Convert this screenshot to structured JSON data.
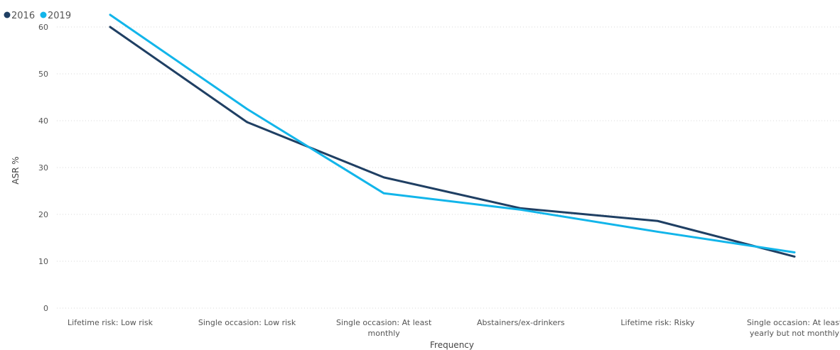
{
  "chart_data": {
    "type": "line",
    "title": "",
    "xlabel": "Frequency",
    "ylabel": "ASR %",
    "categories": [
      [
        "Lifetime risk: Low risk"
      ],
      [
        "Single occasion: Low risk"
      ],
      [
        "Single occasion: At least",
        "monthly"
      ],
      [
        "Abstainers/ex-drinkers"
      ],
      [
        "Lifetime risk: Risky"
      ],
      [
        "Single occasion: At least",
        "yearly but not monthly"
      ]
    ],
    "series": [
      {
        "name": "2016",
        "color": "#1f3f63",
        "values": [
          60.0,
          39.7,
          27.9,
          21.3,
          18.6,
          11.0
        ]
      },
      {
        "name": "2019",
        "color": "#12b5ea",
        "values": [
          62.6,
          42.5,
          24.5,
          21.0,
          16.3,
          11.9
        ]
      }
    ],
    "ylim": [
      0,
      65
    ],
    "yticks": [
      0,
      10,
      20,
      30,
      40,
      50,
      60
    ],
    "grid": true,
    "legend_position": "top-left"
  }
}
